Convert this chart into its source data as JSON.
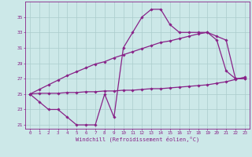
{
  "xlabel": "Windchill (Refroidissement éolien,°C)",
  "bg_color": "#cce8e8",
  "line_color": "#882288",
  "grid_color": "#aacccc",
  "x_hours": [
    0,
    1,
    2,
    3,
    4,
    5,
    6,
    7,
    8,
    9,
    10,
    11,
    12,
    13,
    14,
    15,
    16,
    17,
    18,
    19,
    20,
    21,
    22,
    23
  ],
  "y_main": [
    25,
    24,
    23,
    23,
    22,
    21,
    21,
    21,
    25,
    22,
    31,
    33,
    35,
    36,
    36,
    34,
    33,
    33,
    33,
    33,
    32,
    28,
    27,
    27
  ],
  "y_upper": [
    25,
    25.6,
    26.2,
    26.8,
    27.4,
    27.9,
    28.4,
    28.9,
    29.2,
    29.7,
    30.1,
    30.5,
    30.9,
    31.3,
    31.7,
    31.9,
    32.2,
    32.5,
    32.8,
    33.0,
    32.5,
    32.0,
    27.0,
    27.0
  ],
  "y_lower": [
    25,
    25.1,
    25.1,
    25.1,
    25.2,
    25.2,
    25.3,
    25.3,
    25.4,
    25.4,
    25.5,
    25.5,
    25.6,
    25.7,
    25.7,
    25.8,
    25.9,
    26.0,
    26.1,
    26.2,
    26.4,
    26.6,
    26.9,
    27.2
  ],
  "ylim": [
    20.5,
    37.0
  ],
  "yticks": [
    21,
    23,
    25,
    27,
    29,
    31,
    33,
    35
  ],
  "xlim": [
    -0.5,
    23.5
  ],
  "xticks": [
    0,
    1,
    2,
    3,
    4,
    5,
    6,
    7,
    8,
    9,
    10,
    11,
    12,
    13,
    14,
    15,
    16,
    17,
    18,
    19,
    20,
    21,
    22,
    23
  ]
}
